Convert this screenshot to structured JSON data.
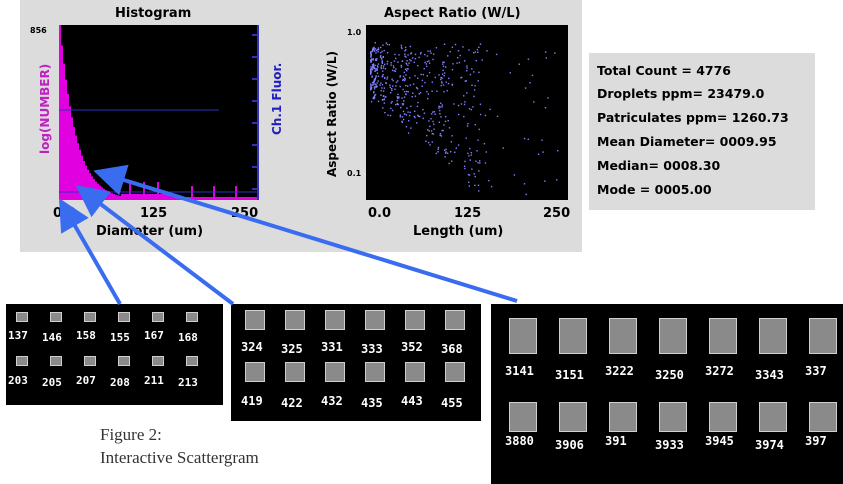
{
  "histogram": {
    "title": "Histogram",
    "ymax_label": "856",
    "ylabel_left": "log(NUMBER)",
    "ylabel_right": "Ch.1 Fluor.",
    "xlabel": "Diameter (um)",
    "xticks": [
      "0.0",
      "125",
      "250"
    ],
    "bar_color": "#e000e0",
    "fluor_color": "#3030c0"
  },
  "scatter": {
    "title": "Aspect Ratio (W/L)",
    "ylabel": "Aspect Ratio (W/L)",
    "xlabel": "Length (um)",
    "yticks": [
      "1.0",
      "0.1"
    ],
    "xticks": [
      "0.0",
      "125",
      "250"
    ],
    "point_color": "#8080ff"
  },
  "stats": {
    "total_count": "Total Count = 4776",
    "droplets": "Droplets ppm= 23479.0",
    "particulates": "Patriculates ppm= 1260.73",
    "mean": "Mean Diameter= 0009.95",
    "median": "Median= 0008.30",
    "mode": "Mode = 0005.00"
  },
  "gallery_small": {
    "row1": [
      "137",
      "146",
      "158",
      "155",
      "167",
      "168"
    ],
    "row2": [
      "203",
      "205",
      "207",
      "208",
      "211",
      "213"
    ]
  },
  "gallery_medium": {
    "row1": [
      "324",
      "325",
      "331",
      "333",
      "352",
      "368"
    ],
    "row2": [
      "419",
      "422",
      "432",
      "435",
      "443",
      "455"
    ]
  },
  "gallery_large": {
    "row1": [
      "3141",
      "3151",
      "3222",
      "3250",
      "3272",
      "3343",
      "337"
    ],
    "row2": [
      "3880",
      "3906",
      "391",
      "3933",
      "3945",
      "3974",
      "397"
    ]
  },
  "caption": {
    "line1": "Figure 2:",
    "line2": "Interactive Scattergram"
  },
  "arrow_color": "#3a6cf0"
}
